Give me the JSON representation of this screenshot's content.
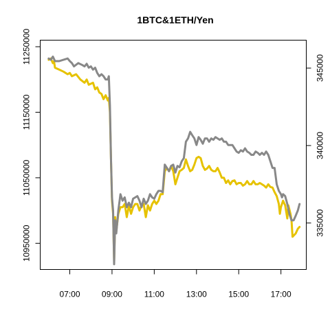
{
  "chart_data": {
    "type": "line",
    "title": "1BTC&1ETH/Yen",
    "xlabel": "",
    "ylabel": "",
    "x_tick_labels": [
      "07:00",
      "09:00",
      "11:00",
      "13:00",
      "15:00",
      "17:00"
    ],
    "x_tick_hours": [
      7,
      9,
      11,
      13,
      15,
      17
    ],
    "xlim": [
      5.6,
      18.2
    ],
    "left_axis": {
      "ylim": [
        10910000,
        11260000
      ],
      "ticks": [
        10950000,
        11050000,
        11150000,
        11250000
      ],
      "tick_labels": [
        "10950000",
        "11050000",
        "11150000",
        "11250000"
      ]
    },
    "right_axis": {
      "ylim": [
        332000,
        346800
      ],
      "ticks": [
        335000,
        340000,
        345000
      ],
      "tick_labels": [
        "335000",
        "340000",
        "345000"
      ]
    },
    "grid": false,
    "series": [
      {
        "axis": "left",
        "color": "#E6C200",
        "points": [
          [
            6.0,
            11230000
          ],
          [
            6.1,
            11232000
          ],
          [
            6.2,
            11225000
          ],
          [
            6.25,
            11228000
          ],
          [
            6.3,
            11218000
          ],
          [
            6.5,
            11215000
          ],
          [
            6.7,
            11212000
          ],
          [
            6.9,
            11208000
          ],
          [
            7.0,
            11210000
          ],
          [
            7.1,
            11205000
          ],
          [
            7.3,
            11208000
          ],
          [
            7.5,
            11200000
          ],
          [
            7.7,
            11195000
          ],
          [
            7.8,
            11200000
          ],
          [
            7.9,
            11192000
          ],
          [
            8.1,
            11195000
          ],
          [
            8.2,
            11185000
          ],
          [
            8.3,
            11188000
          ],
          [
            8.4,
            11180000
          ],
          [
            8.5,
            11178000
          ],
          [
            8.6,
            11170000
          ],
          [
            8.7,
            11176000
          ],
          [
            8.8,
            11168000
          ],
          [
            8.85,
            11172000
          ],
          [
            8.9,
            11150000
          ],
          [
            8.95,
            11080000
          ],
          [
            9.0,
            11015000
          ],
          [
            9.05,
            10995000
          ],
          [
            9.1,
            10922000
          ],
          [
            9.15,
            10990000
          ],
          [
            9.2,
            10968000
          ],
          [
            9.3,
            10995000
          ],
          [
            9.4,
            11005000
          ],
          [
            9.5,
            11005000
          ],
          [
            9.6,
            11010000
          ],
          [
            9.7,
            10990000
          ],
          [
            9.8,
            11008000
          ],
          [
            9.9,
            10995000
          ],
          [
            10.0,
            11005000
          ],
          [
            10.1,
            11010000
          ],
          [
            10.2,
            11010000
          ],
          [
            10.3,
            11000000
          ],
          [
            10.4,
            11008000
          ],
          [
            10.5,
            11010000
          ],
          [
            10.6,
            10990000
          ],
          [
            10.7,
            11008000
          ],
          [
            10.8,
            11000000
          ],
          [
            10.9,
            11010000
          ],
          [
            11.0,
            11015000
          ],
          [
            11.1,
            11010000
          ],
          [
            11.2,
            11015000
          ],
          [
            11.3,
            11025000
          ],
          [
            11.4,
            11025000
          ],
          [
            11.5,
            11060000
          ],
          [
            11.6,
            11065000
          ],
          [
            11.7,
            11060000
          ],
          [
            11.8,
            11068000
          ],
          [
            11.9,
            11060000
          ],
          [
            12.0,
            11040000
          ],
          [
            12.1,
            11050000
          ],
          [
            12.2,
            11060000
          ],
          [
            12.3,
            11062000
          ],
          [
            12.4,
            11065000
          ],
          [
            12.5,
            11078000
          ],
          [
            12.6,
            11068000
          ],
          [
            12.7,
            11060000
          ],
          [
            12.8,
            11062000
          ],
          [
            12.9,
            11070000
          ],
          [
            13.0,
            11080000
          ],
          [
            13.1,
            11082000
          ],
          [
            13.2,
            11080000
          ],
          [
            13.3,
            11068000
          ],
          [
            13.4,
            11062000
          ],
          [
            13.5,
            11064000
          ],
          [
            13.6,
            11068000
          ],
          [
            13.7,
            11062000
          ],
          [
            13.8,
            11060000
          ],
          [
            13.9,
            11060000
          ],
          [
            14.0,
            11065000
          ],
          [
            14.1,
            11058000
          ],
          [
            14.2,
            11050000
          ],
          [
            14.3,
            11050000
          ],
          [
            14.4,
            11042000
          ],
          [
            14.5,
            11046000
          ],
          [
            14.6,
            11040000
          ],
          [
            14.7,
            11045000
          ],
          [
            14.8,
            11046000
          ],
          [
            14.9,
            11040000
          ],
          [
            15.0,
            11042000
          ],
          [
            15.1,
            11042000
          ],
          [
            15.2,
            11038000
          ],
          [
            15.3,
            11040000
          ],
          [
            15.4,
            11045000
          ],
          [
            15.5,
            11040000
          ],
          [
            15.6,
            11040000
          ],
          [
            15.7,
            11045000
          ],
          [
            15.8,
            11040000
          ],
          [
            15.9,
            11040000
          ],
          [
            16.0,
            11042000
          ],
          [
            16.1,
            11040000
          ],
          [
            16.2,
            11038000
          ],
          [
            16.3,
            11035000
          ],
          [
            16.4,
            11040000
          ],
          [
            16.5,
            11036000
          ],
          [
            16.6,
            11035000
          ],
          [
            16.7,
            11028000
          ],
          [
            16.8,
            11022000
          ],
          [
            16.9,
            11010000
          ],
          [
            16.95,
            10995000
          ],
          [
            17.0,
            11005000
          ],
          [
            17.1,
            11015000
          ],
          [
            17.2,
            11008000
          ],
          [
            17.3,
            10988000
          ],
          [
            17.35,
            11008000
          ],
          [
            17.45,
            10995000
          ],
          [
            17.5,
            10985000
          ],
          [
            17.55,
            10960000
          ],
          [
            17.7,
            10965000
          ],
          [
            17.8,
            10972000
          ],
          [
            17.88,
            10975000
          ]
        ]
      },
      {
        "axis": "left",
        "color": "#888888",
        "points": [
          [
            6.0,
            11232000
          ],
          [
            6.1,
            11230000
          ],
          [
            6.2,
            11235000
          ],
          [
            6.3,
            11228000
          ],
          [
            6.5,
            11228000
          ],
          [
            6.7,
            11230000
          ],
          [
            6.9,
            11232000
          ],
          [
            7.0,
            11228000
          ],
          [
            7.1,
            11225000
          ],
          [
            7.2,
            11220000
          ],
          [
            7.4,
            11225000
          ],
          [
            7.6,
            11222000
          ],
          [
            7.7,
            11220000
          ],
          [
            7.8,
            11224000
          ],
          [
            7.9,
            11218000
          ],
          [
            8.0,
            11220000
          ],
          [
            8.1,
            11215000
          ],
          [
            8.2,
            11218000
          ],
          [
            8.3,
            11210000
          ],
          [
            8.4,
            11205000
          ],
          [
            8.5,
            11208000
          ],
          [
            8.6,
            11205000
          ],
          [
            8.7,
            11200000
          ],
          [
            8.8,
            11200000
          ],
          [
            8.85,
            11205000
          ],
          [
            8.9,
            11160000
          ],
          [
            8.95,
            11080000
          ],
          [
            9.0,
            11020000
          ],
          [
            9.05,
            11000000
          ],
          [
            9.1,
            10918000
          ],
          [
            9.15,
            10985000
          ],
          [
            9.2,
            10965000
          ],
          [
            9.3,
            11000000
          ],
          [
            9.4,
            11025000
          ],
          [
            9.5,
            11015000
          ],
          [
            9.6,
            11020000
          ],
          [
            9.7,
            11005000
          ],
          [
            9.8,
            11012000
          ],
          [
            9.9,
            11005000
          ],
          [
            10.0,
            11018000
          ],
          [
            10.1,
            11020000
          ],
          [
            10.2,
            11022000
          ],
          [
            10.3,
            11015000
          ],
          [
            10.4,
            11005000
          ],
          [
            10.5,
            11018000
          ],
          [
            10.6,
            11010000
          ],
          [
            10.7,
            11015000
          ],
          [
            10.8,
            11025000
          ],
          [
            10.9,
            11020000
          ],
          [
            11.0,
            11018000
          ],
          [
            11.1,
            11025000
          ],
          [
            11.2,
            11030000
          ],
          [
            11.3,
            11030000
          ],
          [
            11.4,
            11028000
          ],
          [
            11.5,
            11070000
          ],
          [
            11.6,
            11065000
          ],
          [
            11.7,
            11060000
          ],
          [
            11.8,
            11068000
          ],
          [
            11.9,
            11070000
          ],
          [
            12.0,
            11058000
          ],
          [
            12.1,
            11068000
          ],
          [
            12.2,
            11066000
          ],
          [
            12.3,
            11075000
          ],
          [
            12.4,
            11080000
          ],
          [
            12.5,
            11105000
          ],
          [
            12.6,
            11110000
          ],
          [
            12.7,
            11120000
          ],
          [
            12.8,
            11115000
          ],
          [
            12.9,
            11110000
          ],
          [
            13.0,
            11100000
          ],
          [
            13.1,
            11112000
          ],
          [
            13.2,
            11108000
          ],
          [
            13.3,
            11102000
          ],
          [
            13.4,
            11110000
          ],
          [
            13.5,
            11110000
          ],
          [
            13.6,
            11105000
          ],
          [
            13.7,
            11110000
          ],
          [
            13.8,
            11108000
          ],
          [
            13.9,
            11112000
          ],
          [
            14.0,
            11110000
          ],
          [
            14.1,
            11108000
          ],
          [
            14.2,
            11110000
          ],
          [
            14.3,
            11105000
          ],
          [
            14.4,
            11105000
          ],
          [
            14.5,
            11100000
          ],
          [
            14.6,
            11100000
          ],
          [
            14.7,
            11100000
          ],
          [
            14.8,
            11095000
          ],
          [
            14.9,
            11090000
          ],
          [
            15.0,
            11088000
          ],
          [
            15.1,
            11092000
          ],
          [
            15.2,
            11090000
          ],
          [
            15.3,
            11095000
          ],
          [
            15.4,
            11090000
          ],
          [
            15.5,
            11088000
          ],
          [
            15.6,
            11085000
          ],
          [
            15.7,
            11085000
          ],
          [
            15.8,
            11090000
          ],
          [
            15.9,
            11088000
          ],
          [
            16.0,
            11085000
          ],
          [
            16.1,
            11088000
          ],
          [
            16.2,
            11085000
          ],
          [
            16.3,
            11090000
          ],
          [
            16.4,
            11085000
          ],
          [
            16.5,
            11075000
          ],
          [
            16.6,
            11065000
          ],
          [
            16.7,
            11065000
          ],
          [
            16.8,
            11040000
          ],
          [
            16.9,
            11030000
          ],
          [
            17.0,
            11025000
          ],
          [
            17.05,
            11020000
          ],
          [
            17.1,
            11025000
          ],
          [
            17.2,
            11022000
          ],
          [
            17.3,
            11010000
          ],
          [
            17.4,
            10995000
          ],
          [
            17.5,
            10985000
          ],
          [
            17.6,
            10985000
          ],
          [
            17.7,
            10992000
          ],
          [
            17.8,
            11000000
          ],
          [
            17.88,
            11010000
          ]
        ]
      }
    ]
  }
}
